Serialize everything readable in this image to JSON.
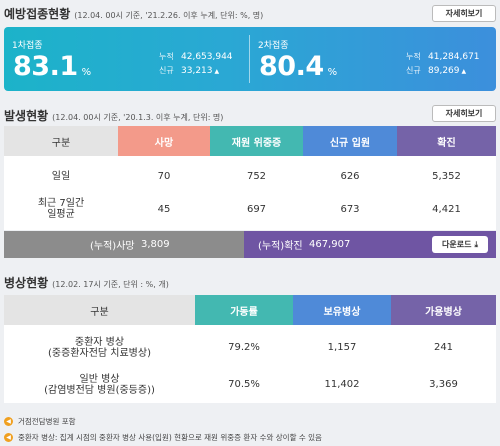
{
  "vaccination": {
    "title": "예방접종현황",
    "note": "(12.04. 00시 기준, '21.2.26. 이후 누계, 단위: %, 명)",
    "detail_label": "자세히보기",
    "first_dose": {
      "label": "1차접종",
      "percent": "83.1",
      "unit": "%",
      "cumulative_label": "누적",
      "cumulative": "42,653,944",
      "new_label": "신규",
      "new": "33,213"
    },
    "second_dose": {
      "label": "2차접종",
      "percent": "80.4",
      "unit": "%",
      "cumulative_label": "누적",
      "cumulative": "41,284,671",
      "new_label": "신규",
      "new": "89,269"
    }
  },
  "occurrence": {
    "title": "발생현황",
    "note": "(12.04. 00시 기준, '20.1.3. 이후 누계, 단위: 명)",
    "detail_label": "자세히보기",
    "headers": [
      "구분",
      "사망",
      "재원 위중증",
      "신규 입원",
      "확진"
    ],
    "header_colors": [
      "#e4e4e4",
      "#f39a8a",
      "#43b8b1",
      "#4f8ad8",
      "#7563a8"
    ],
    "rows": [
      {
        "label": "일일",
        "values": [
          "70",
          "752",
          "626",
          "5,352"
        ]
      },
      {
        "label": "최근 7일간\n일평균",
        "values": [
          "45",
          "697",
          "673",
          "4,421"
        ]
      }
    ],
    "total_deaths_label": "(누적)사망",
    "total_deaths": "3,809",
    "total_confirmed_label": "(누적)확진",
    "total_confirmed": "467,907",
    "download_label": "다운로드"
  },
  "beds": {
    "title": "병상현황",
    "note": "(12.02. 17시 기준, 단위 : %, 개)",
    "headers": [
      "구분",
      "가동률",
      "보유병상",
      "가용병상"
    ],
    "header_colors": [
      "#e4e4e4",
      "#43b8b1",
      "#4f8ad8",
      "#7563a8"
    ],
    "rows": [
      {
        "label": "중환자 병상\n(중증환자전담 치료병상)",
        "values": [
          "79.2%",
          "1,157",
          "241"
        ]
      },
      {
        "label": "일반 병상\n(감염병전담 병원(중등증))",
        "values": [
          "70.5%",
          "11,402",
          "3,369"
        ]
      }
    ]
  },
  "notes": [
    "거점전담병원 포함",
    "중환자 병상: 집계 시점의 중환자 병상 사용(입원) 현황으로 재원 위중증 환자 수와 상이할 수 있음"
  ]
}
